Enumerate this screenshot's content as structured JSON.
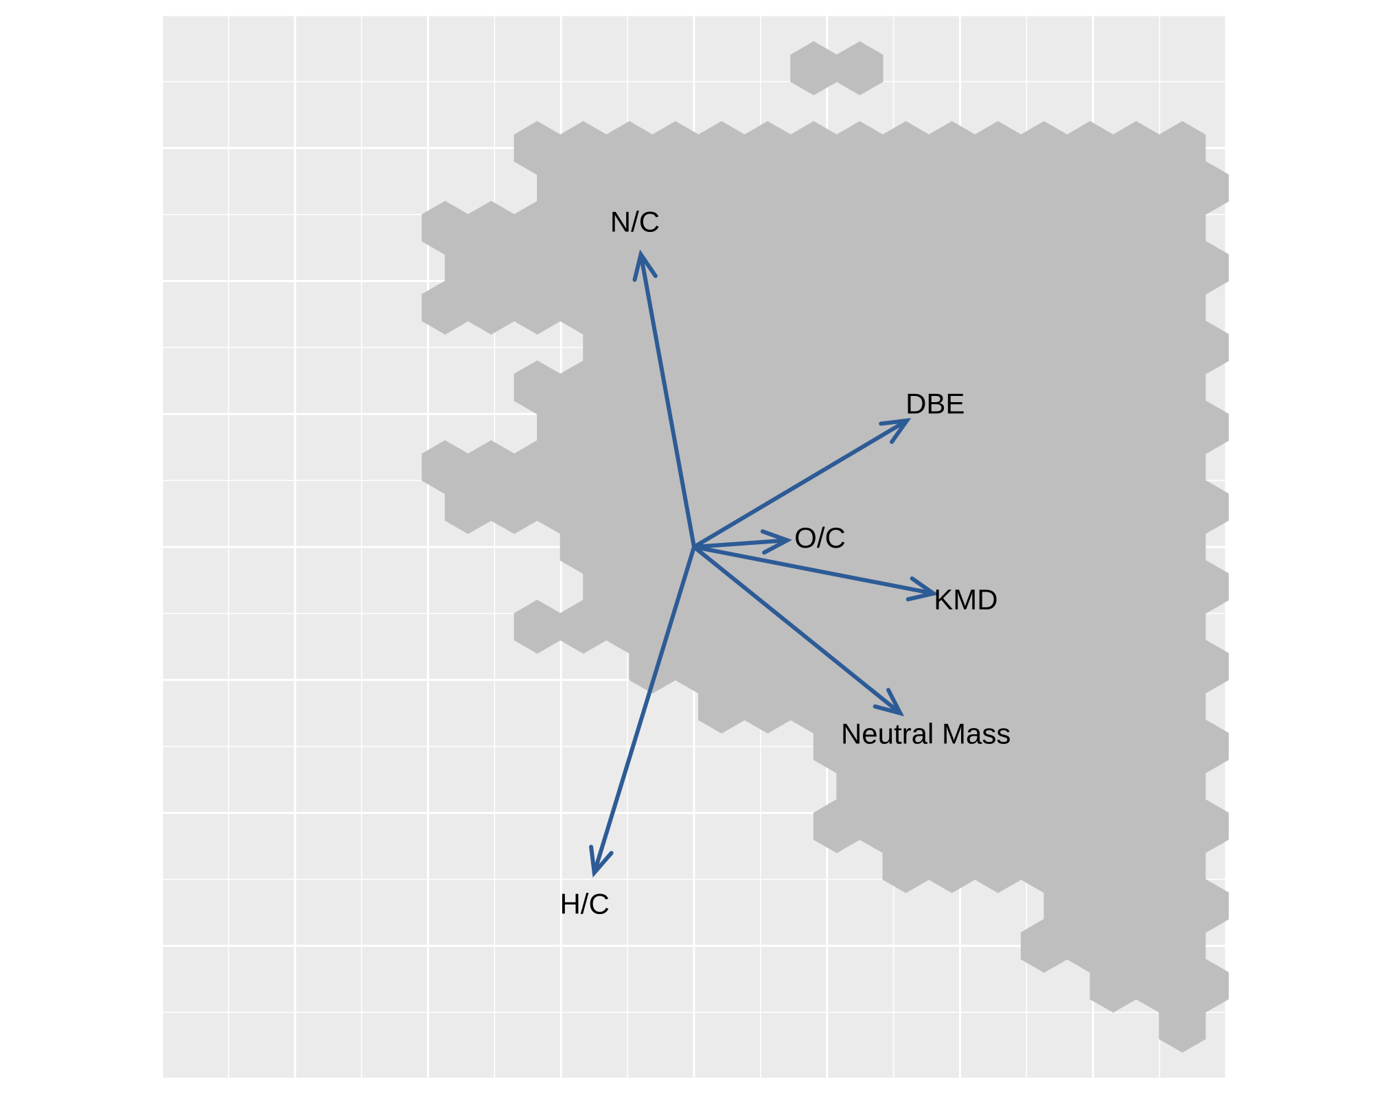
{
  "chart_data": {
    "type": "scatter",
    "subtype": "hexbin-biplot",
    "title": "",
    "xlabel": "",
    "ylabel": "",
    "xlim": [
      -4,
      4
    ],
    "ylim": [
      -4,
      4
    ],
    "grid": true,
    "legend": "none",
    "colors": {
      "panel": "#EBEBEB",
      "hex": "#BEBEBE",
      "arrow": "#2D5B96",
      "grid": "#FFFFFF"
    },
    "hex_radius": 0.2,
    "hex_occupancy": [
      "..............xx...........................",
      "...............................x...........",
      "........xxxxxxxxxxxxxxxxxxxxxxxxxx........",
      "........xxxxxxxxxxxxxxxxxxxxxxxxxx.........",
      "......xxxxxxxxxxxxxxxxxxxxxxxxxxxxxxx......",
      "......xxxxxxxxxxxxxxxxxxxxxxxxxxxxxxxxxx...",
      "......xxxxxxxxxxxxxxxxxxxxxxxxxxxxxxxxxxx..",
      ".........xxxxxxxxxxxxxxxxxxxxxxxxxxxxxxxxx.",
      "........xxxxxxxxxxxxxxxxxxxxxxxxxxxxxxxxxxx",
      "........xxxxxxxxxxxxxxxxxxxxxxxxxxxxxxxxxx.",
      "......xxxxxxxxxxxxxxxxxxxxxxxxxxxxxxxxxxxxx",
      "......xxxxxxxxxxxxxxxxxxxxxxxxxxxxxxxxxxxx.",
      ".........xxxxxxxxxxxxxxxxxxxxxxxxxxxxxx..x.",
      ".........xxxxxxxxxxxxxxxxxxxxxxxxxxxxxx....",
      "........xxxxxxxxxxxxxxxxxxxxxxxxxxxxxxx....",
      "..........xxxxxxxxxxxxxxxxxxxxxxxxxxx...x..",
      "............xxxxxxxxxxxxxxxxxxxxxxxxxx.....",
      "..............xxxxxxxxxxxxxxxxxxxxxxx......",
      "...............xxxxxxxxxxxxxxxxxxxxxx......",
      "..............xxxxxxxxxxxxxxxxxx...........",
      "................xxxxxxxxxxxxxxxxx..........",
      "...................xxxxxxxxxxxxx...........",
      "...................xxxxxxxxxxxxx...........",
      "....................xxxxxxxxxxxx...........",
      "......................xxxxxxxxx....x.......",
      "..............................x............",
      "...........................................",
      "............................x..............",
      "..........................................."
    ],
    "vectors": [
      {
        "name": "N/C",
        "x": -0.4,
        "y": 2.2
      },
      {
        "name": "DBE",
        "x": 1.6,
        "y": 0.95
      },
      {
        "name": "O/C",
        "x": 0.7,
        "y": 0.05
      },
      {
        "name": "KMD",
        "x": 1.8,
        "y": -0.35
      },
      {
        "name": "Neutral Mass",
        "x": 1.55,
        "y": -1.25
      },
      {
        "name": "H/C",
        "x": -0.75,
        "y": -2.45
      }
    ]
  }
}
